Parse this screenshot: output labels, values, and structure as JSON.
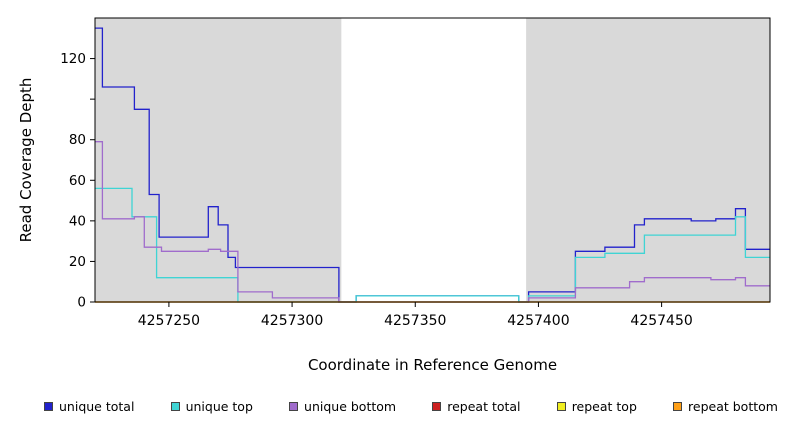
{
  "chart_data": {
    "type": "line",
    "line_style": "step",
    "title": "",
    "xlabel": "Coordinate in Reference Genome",
    "ylabel": "Read Coverage Depth",
    "xlim": [
      4257220,
      4257494
    ],
    "ylim": [
      0,
      140
    ],
    "grid": false,
    "shade_color": "#d9d9d9",
    "shaded_regions": [
      [
        4257220,
        4257320
      ],
      [
        4257395,
        4257494
      ]
    ],
    "xticks": [
      {
        "value": 4257250,
        "label": "4257250"
      },
      {
        "value": 4257300,
        "label": "4257300"
      },
      {
        "value": 4257350,
        "label": "4257350"
      },
      {
        "value": 4257400,
        "label": "4257400"
      },
      {
        "value": 4257450,
        "label": "4257450"
      }
    ],
    "yticks": [
      {
        "value": 0,
        "label": "0"
      },
      {
        "value": 20,
        "label": "20"
      },
      {
        "value": 40,
        "label": "40"
      },
      {
        "value": 60,
        "label": "60"
      },
      {
        "value": 80,
        "label": "80"
      },
      {
        "value": 100,
        "label": ""
      },
      {
        "value": 120,
        "label": "120"
      }
    ],
    "series": [
      {
        "name": "unique total",
        "color": "#2222cc",
        "points": [
          [
            4257220,
            135
          ],
          [
            4257223,
            106
          ],
          [
            4257236,
            95
          ],
          [
            4257242,
            53
          ],
          [
            4257246,
            32
          ],
          [
            4257266,
            47
          ],
          [
            4257270,
            38
          ],
          [
            4257274,
            22
          ],
          [
            4257277,
            17
          ],
          [
            4257319,
            0
          ],
          [
            4257326,
            3
          ],
          [
            4257392,
            0
          ],
          [
            4257396,
            5
          ],
          [
            4257415,
            25
          ],
          [
            4257427,
            27
          ],
          [
            4257439,
            38
          ],
          [
            4257443,
            41
          ],
          [
            4257462,
            40
          ],
          [
            4257472,
            41
          ],
          [
            4257480,
            46
          ],
          [
            4257484,
            26
          ],
          [
            4257494,
            26
          ]
        ]
      },
      {
        "name": "unique top",
        "color": "#3fd4d4",
        "points": [
          [
            4257220,
            56
          ],
          [
            4257235,
            42
          ],
          [
            4257245,
            12
          ],
          [
            4257278,
            0
          ],
          [
            4257326,
            3
          ],
          [
            4257392,
            0
          ],
          [
            4257396,
            3
          ],
          [
            4257415,
            22
          ],
          [
            4257427,
            24
          ],
          [
            4257443,
            33
          ],
          [
            4257480,
            42
          ],
          [
            4257484,
            22
          ],
          [
            4257494,
            22
          ]
        ]
      },
      {
        "name": "unique bottom",
        "color": "#a06ccc",
        "points": [
          [
            4257220,
            79
          ],
          [
            4257223,
            41
          ],
          [
            4257236,
            42
          ],
          [
            4257240,
            27
          ],
          [
            4257247,
            25
          ],
          [
            4257266,
            26
          ],
          [
            4257271,
            25
          ],
          [
            4257278,
            5
          ],
          [
            4257292,
            2
          ],
          [
            4257319,
            0
          ],
          [
            4257396,
            2
          ],
          [
            4257415,
            7
          ],
          [
            4257437,
            10
          ],
          [
            4257443,
            12
          ],
          [
            4257470,
            11
          ],
          [
            4257480,
            12
          ],
          [
            4257484,
            8
          ],
          [
            4257494,
            8
          ]
        ]
      },
      {
        "name": "repeat total",
        "color": "#cc2020",
        "points": [
          [
            4257220,
            0
          ],
          [
            4257494,
            0
          ]
        ]
      },
      {
        "name": "repeat top",
        "color": "#f0ee20",
        "points": [
          [
            4257220,
            0
          ],
          [
            4257494,
            0
          ]
        ]
      },
      {
        "name": "repeat bottom",
        "color": "#ffa018",
        "points": [
          [
            4257220,
            0
          ],
          [
            4257494,
            0
          ]
        ]
      }
    ]
  },
  "legend": {
    "items": [
      {
        "label": "unique total",
        "color": "#2222cc"
      },
      {
        "label": "unique top",
        "color": "#3fd4d4"
      },
      {
        "label": "unique bottom",
        "color": "#a06ccc"
      },
      {
        "label": "repeat total",
        "color": "#cc2020"
      },
      {
        "label": "repeat top",
        "color": "#f0ee20"
      },
      {
        "label": "repeat bottom",
        "color": "#ffa018"
      }
    ]
  }
}
